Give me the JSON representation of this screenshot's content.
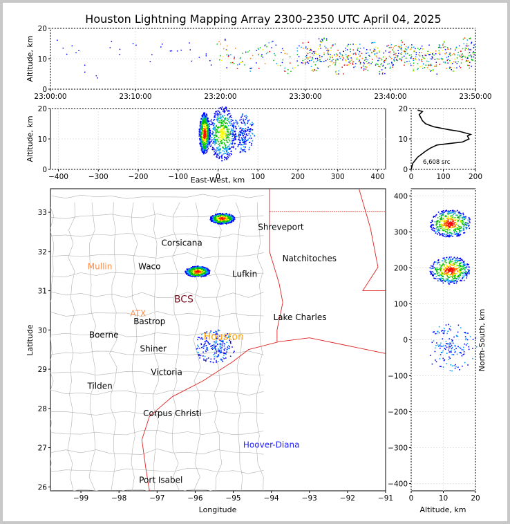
{
  "chart_data": [
    {
      "panel": "time-altitude",
      "type": "scatter",
      "title": "Houston Lightning Mapping Array 2300-2350 UTC April 04, 2025",
      "xlabel": "",
      "ylabel": "Altitude, km",
      "x_ticks": [
        "23:00:00",
        "23:10:00",
        "23:20:00",
        "23:30:00",
        "23:40:00",
        "23:50:00"
      ],
      "xlim_minutes": [
        0,
        50
      ],
      "ylim": [
        0,
        20
      ],
      "y_ticks": [
        0,
        10,
        20
      ],
      "grid": true,
      "series": [
        {
          "points": [
            [
              1,
              15
            ],
            [
              2,
              13
            ],
            [
              3,
              12
            ],
            [
              4,
              7
            ],
            [
              5,
              5
            ],
            [
              7,
              15
            ],
            [
              8,
              12
            ],
            [
              10,
              14
            ],
            [
              12,
              10
            ],
            [
              13,
              15
            ],
            [
              14,
              12
            ],
            [
              15,
              13
            ],
            [
              16,
              14
            ],
            [
              17,
              10
            ],
            [
              18,
              12
            ],
            [
              19,
              9
            ],
            [
              20,
              13
            ],
            [
              21,
              11
            ],
            [
              22,
              10
            ],
            [
              23,
              9
            ],
            [
              24,
              11
            ],
            [
              25,
              12
            ],
            [
              26,
              13
            ],
            [
              27,
              10
            ],
            [
              28,
              9
            ],
            [
              29,
              11
            ],
            [
              30,
              12
            ],
            [
              31,
              10
            ],
            [
              32,
              13
            ],
            [
              33,
              11
            ],
            [
              34,
              9
            ],
            [
              35,
              12
            ],
            [
              36,
              11
            ],
            [
              37,
              10
            ],
            [
              38,
              12
            ],
            [
              39,
              9
            ],
            [
              40,
              11
            ],
            [
              41,
              13
            ],
            [
              42,
              12
            ],
            [
              43,
              10
            ],
            [
              44,
              11
            ],
            [
              45,
              9
            ],
            [
              46,
              12
            ],
            [
              47,
              10
            ],
            [
              48,
              11
            ],
            [
              49,
              13
            ],
            [
              49.5,
              11
            ]
          ]
        }
      ]
    },
    {
      "panel": "east-west-altitude",
      "type": "heatmap",
      "xlabel": "East-West, km",
      "ylabel": "Altitude, km",
      "xlim": [
        -420,
        420
      ],
      "x_ticks": [
        -400,
        -300,
        -200,
        -100,
        0,
        100,
        200,
        300,
        400
      ],
      "ylim": [
        0,
        20
      ],
      "y_ticks": [
        0,
        10,
        20
      ],
      "clusters": [
        {
          "x": -35,
          "y": 12,
          "intensity": "high"
        },
        {
          "x": 10,
          "y": 12,
          "intensity": "medium"
        },
        {
          "x": 60,
          "y": 12,
          "intensity": "low"
        }
      ]
    },
    {
      "panel": "altitude-histogram",
      "type": "line",
      "xlim": [
        0,
        200
      ],
      "x_ticks": [
        0,
        100,
        200
      ],
      "ylim": [
        0,
        20
      ],
      "y_ticks": [
        0,
        10,
        20
      ],
      "annotation": "6,608 src",
      "series": [
        {
          "x": [
            0,
            5,
            20,
            45,
            60,
            80,
            120,
            160,
            180,
            175,
            185,
            150,
            120,
            95,
            70,
            45,
            35,
            30,
            25,
            35,
            20
          ],
          "y": [
            0,
            2,
            4,
            6,
            7,
            8,
            8.5,
            9,
            10,
            11,
            11.5,
            12.5,
            13,
            13.5,
            14,
            15,
            16,
            17,
            18,
            19,
            19.5
          ]
        }
      ]
    },
    {
      "panel": "plan-view-map",
      "type": "scatter",
      "xlabel": "Longitude",
      "ylabel": "Latitude",
      "xlim": [
        -99.8,
        -91.0
      ],
      "x_ticks": [
        -99,
        -98,
        -97,
        -96,
        -95,
        -94,
        -93,
        -92,
        -91
      ],
      "ylim": [
        25.9,
        33.6
      ],
      "y_ticks": [
        26,
        27,
        28,
        29,
        30,
        31,
        32,
        33
      ],
      "labels": [
        {
          "text": "Shreveport",
          "lon": -93.75,
          "lat": 32.55,
          "color": "#000000"
        },
        {
          "text": "Corsicana",
          "lon": -96.35,
          "lat": 32.15,
          "color": "#000000"
        },
        {
          "text": "Natchitoches",
          "lon": -93.0,
          "lat": 31.75,
          "color": "#000000"
        },
        {
          "text": "Mullin",
          "lon": -98.5,
          "lat": 31.55,
          "color": "#ff8c4a"
        },
        {
          "text": "Waco",
          "lon": -97.2,
          "lat": 31.55,
          "color": "#000000"
        },
        {
          "text": "Lufkin",
          "lon": -94.7,
          "lat": 31.35,
          "color": "#000000"
        },
        {
          "text": "BCS",
          "lon": -96.3,
          "lat": 30.7,
          "color": "#7a1020"
        },
        {
          "text": "ATX",
          "lon": -97.5,
          "lat": 30.35,
          "color": "#ff8c4a"
        },
        {
          "text": "Bastrop",
          "lon": -97.2,
          "lat": 30.15,
          "color": "#000000"
        },
        {
          "text": "Lake Charles",
          "lon": -93.25,
          "lat": 30.25,
          "color": "#000000"
        },
        {
          "text": "Boerne",
          "lon": -98.4,
          "lat": 29.8,
          "color": "#000000"
        },
        {
          "text": "Houston",
          "lon": -95.25,
          "lat": 29.75,
          "color": "#ffa500"
        },
        {
          "text": "Shiner",
          "lon": -97.1,
          "lat": 29.45,
          "color": "#000000"
        },
        {
          "text": "Victoria",
          "lon": -96.75,
          "lat": 28.85,
          "color": "#000000"
        },
        {
          "text": "Tilden",
          "lon": -98.5,
          "lat": 28.5,
          "color": "#000000"
        },
        {
          "text": "Corpus Christi",
          "lon": -96.6,
          "lat": 27.8,
          "color": "#000000"
        },
        {
          "text": "Hoover-Diana",
          "lon": -94.0,
          "lat": 27.0,
          "color": "#2020ff"
        },
        {
          "text": "Port Isabel",
          "lon": -96.9,
          "lat": 26.1,
          "color": "#000000"
        }
      ],
      "clusters": [
        {
          "lon": -95.3,
          "lat": 32.85,
          "intensity": "high"
        },
        {
          "lon": -95.95,
          "lat": 31.5,
          "intensity": "high"
        },
        {
          "lon": -95.5,
          "lat": 29.6,
          "intensity": "low"
        }
      ]
    },
    {
      "panel": "altitude-north-south",
      "type": "heatmap",
      "xlabel": "Altitude, km",
      "ylabel": "North-South, km",
      "xlim": [
        0,
        20
      ],
      "x_ticks": [
        0,
        10,
        20
      ],
      "ylim": [
        -420,
        420
      ],
      "y_ticks": [
        -400,
        -300,
        -200,
        -100,
        0,
        100,
        200,
        300,
        400
      ],
      "clusters": [
        {
          "x": 12,
          "y": 325,
          "intensity": "high"
        },
        {
          "x": 12,
          "y": 195,
          "intensity": "high"
        },
        {
          "x": 12,
          "y": -20,
          "intensity": "low"
        }
      ]
    }
  ],
  "colors": {
    "high": "#ff0000",
    "mid": "#00c000",
    "low": "#0000ff",
    "border_state": "#e02020",
    "county": "#b0b0b0"
  }
}
